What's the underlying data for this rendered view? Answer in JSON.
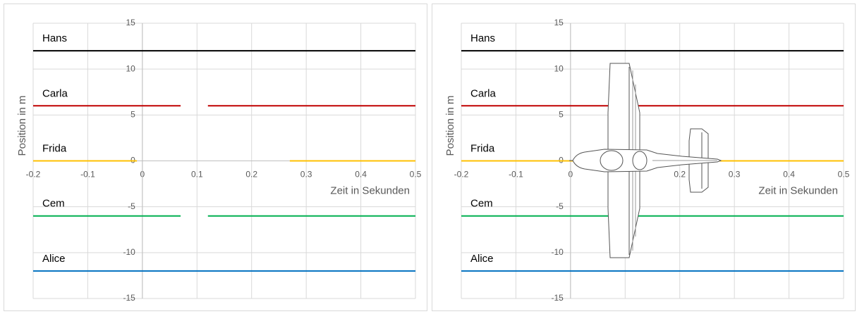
{
  "chart_data": [
    {
      "type": "line",
      "x_label": "Zeit in Sekunden",
      "y_label": "Position in m",
      "x": [
        -0.2,
        -0.01,
        0.07,
        0.095,
        0.12,
        0.27,
        0.5
      ],
      "series": [
        {
          "name": "Hans",
          "color": "#000000",
          "values": [
            12,
            12,
            12,
            12,
            12,
            12,
            12
          ]
        },
        {
          "name": "Carla",
          "color": "#c00000",
          "values": [
            6,
            6,
            6,
            null,
            6,
            6,
            6
          ]
        },
        {
          "name": "Frida",
          "color": "#ffc000",
          "values": [
            0,
            0,
            null,
            null,
            null,
            0,
            0
          ]
        },
        {
          "name": "Cem",
          "color": "#00b050",
          "values": [
            -6,
            -6,
            -6,
            null,
            -6,
            -6,
            -6
          ]
        },
        {
          "name": "Alice",
          "color": "#0070c0",
          "values": [
            -12,
            -12,
            -12,
            -12,
            -12,
            -12,
            -12
          ]
        }
      ],
      "xlim": [
        -0.2,
        0.5
      ],
      "xticks": [
        -0.2,
        -0.1,
        0,
        0.1,
        0.2,
        0.3,
        0.4,
        0.5
      ],
      "ylim": [
        -15,
        15
      ],
      "yticks": [
        -15,
        -10,
        -5,
        0,
        5,
        10,
        15
      ],
      "grid": true
    },
    {
      "type": "line",
      "x_label": "Zeit in Sekunden",
      "y_label": "Position in m",
      "x": [
        -0.2,
        0.5
      ],
      "series": [
        {
          "name": "Hans",
          "color": "#000000",
          "values": [
            12,
            12
          ]
        },
        {
          "name": "Carla",
          "color": "#c00000",
          "values": [
            6,
            6
          ]
        },
        {
          "name": "Frida",
          "color": "#ffc000",
          "values": [
            0,
            0
          ]
        },
        {
          "name": "Cem",
          "color": "#00b050",
          "values": [
            -6,
            -6
          ]
        },
        {
          "name": "Alice",
          "color": "#0070c0",
          "values": [
            -12,
            -12
          ]
        }
      ],
      "xlim": [
        -0.2,
        0.5
      ],
      "xticks": [
        -0.2,
        -0.1,
        0,
        0.1,
        0.2,
        0.3,
        0.4,
        0.5
      ],
      "ylim": [
        -15,
        15
      ],
      "yticks": [
        -15,
        -10,
        -5,
        0,
        5,
        10,
        15
      ],
      "grid": true
    }
  ]
}
